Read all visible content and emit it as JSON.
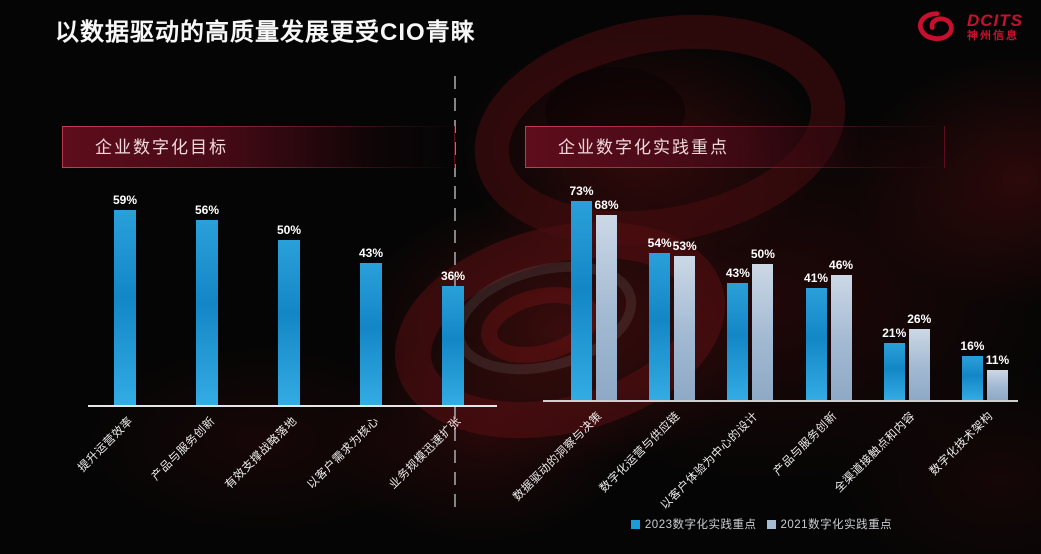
{
  "ui": {
    "title": "以数据驱动的高质量发展更受CIO青睐",
    "logo": {
      "brand": "DCITS",
      "company": "神州信息",
      "icon": "swirl-logo-icon",
      "color": "#c8102e"
    },
    "divider_style": "vertical-dashed"
  },
  "colors": {
    "background": "#050505",
    "bar_2023": "#1b9cd8",
    "bar_2021": "#a4bcd4",
    "header_box_red": "#5e0d1c",
    "header_border_red": "#d64658",
    "title_text": "#f7f7f7",
    "baseline": "#e6e6e6"
  },
  "chart_data": [
    {
      "type": "bar",
      "title": "企业数字化目标",
      "categories": [
        "提升运营效率",
        "产品与服务创新",
        "有效支撑战略落地",
        "以客户需求为核心",
        "业务规模迅速扩张"
      ],
      "values": [
        59,
        56,
        50,
        43,
        36
      ],
      "unit": "%",
      "ylim": [
        0,
        80
      ],
      "grid": false,
      "bar_color": "#1b9cd8",
      "data_labels": [
        "59%",
        "56%",
        "50%",
        "43%",
        "36%"
      ]
    },
    {
      "type": "bar",
      "title": "企业数字化实践重点",
      "categories": [
        "数据驱动的洞察与决策",
        "数字化运营与供应链",
        "以客户体验为中心的设计",
        "产品与服务创新",
        "全渠道接触点和内容",
        "数字化技术架构"
      ],
      "series": [
        {
          "name": "2023数字化实践重点",
          "values": [
            73,
            54,
            43,
            41,
            21,
            16
          ],
          "color": "#1b9cd8"
        },
        {
          "name": "2021数字化实践重点",
          "values": [
            68,
            53,
            50,
            46,
            26,
            11
          ],
          "color": "#a4bcd4"
        }
      ],
      "unit": "%",
      "ylim": [
        0,
        80
      ],
      "grid": false,
      "legend_position": "bottom"
    }
  ]
}
